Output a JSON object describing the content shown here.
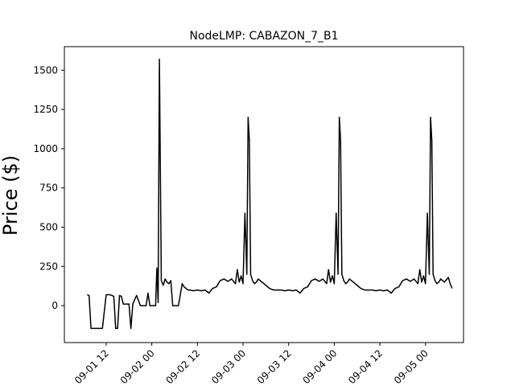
{
  "chart_data": {
    "type": "line",
    "title": "NodeLMP: CABAZON_7_B1",
    "xlabel": "",
    "ylabel": "Price ($)",
    "x_unit": "datetime",
    "xlim": [
      "2023-09-01 01:00",
      "2023-09-05 10:00"
    ],
    "ylim": [
      -235,
      1650
    ],
    "yticks": [
      0,
      250,
      500,
      750,
      1000,
      1250,
      1500
    ],
    "ytick_labels": [
      "0",
      "250",
      "500",
      "750",
      "1000",
      "1250",
      "1500"
    ],
    "xticks": [
      "2023-09-01 12:00",
      "2023-09-02 00:00",
      "2023-09-02 12:00",
      "2023-09-03 00:00",
      "2023-09-03 12:00",
      "2023-09-04 00:00",
      "2023-09-04 12:00",
      "2023-09-05 00:00"
    ],
    "xtick_labels": [
      "09-01 12",
      "09-02 00",
      "09-02 12",
      "09-03 00",
      "09-03 12",
      "09-04 00",
      "09-04 12",
      "09-05 00"
    ],
    "line_color": "#000000",
    "grid": false,
    "legend": "none",
    "series": [
      {
        "x": [
          "2023-09-01 07:00",
          "2023-09-01 07:30",
          "2023-09-01 08:00",
          "2023-09-01 09:00",
          "2023-09-01 10:00",
          "2023-09-01 11:00",
          "2023-09-01 12:00",
          "2023-09-01 13:00",
          "2023-09-01 14:00",
          "2023-09-01 14:30",
          "2023-09-01 15:00",
          "2023-09-01 15:30",
          "2023-09-01 16:00",
          "2023-09-01 16:30",
          "2023-09-01 17:00",
          "2023-09-01 18:00",
          "2023-09-01 18:30",
          "2023-09-01 19:00",
          "2023-09-01 19:30",
          "2023-09-01 20:00",
          "2023-09-01 21:00",
          "2023-09-01 21:30",
          "2023-09-01 22:00",
          "2023-09-01 22:30",
          "2023-09-01 23:00",
          "2023-09-01 23:30",
          "2023-09-02 00:00",
          "2023-09-02 00:30",
          "2023-09-02 01:00",
          "2023-09-02 01:20",
          "2023-09-02 01:40",
          "2023-09-02 02:00",
          "2023-09-02 02:30",
          "2023-09-02 03:00",
          "2023-09-02 03:30",
          "2023-09-02 04:00",
          "2023-09-02 04:30",
          "2023-09-02 05:00",
          "2023-09-02 05:30",
          "2023-09-02 06:00",
          "2023-09-02 07:00",
          "2023-09-02 08:00",
          "2023-09-02 08:30",
          "2023-09-02 09:00",
          "2023-09-02 09:30",
          "2023-09-02 10:00",
          "2023-09-02 11:00",
          "2023-09-02 12:00",
          "2023-09-02 13:00",
          "2023-09-02 14:00",
          "2023-09-02 15:00",
          "2023-09-02 16:00",
          "2023-09-02 17:00",
          "2023-09-02 18:00",
          "2023-09-02 19:00",
          "2023-09-02 20:00",
          "2023-09-02 21:00",
          "2023-09-02 22:00",
          "2023-09-02 22:30",
          "2023-09-02 23:00",
          "2023-09-02 23:30",
          "2023-09-03 00:00",
          "2023-09-03 00:30",
          "2023-09-03 01:00",
          "2023-09-03 01:20",
          "2023-09-03 01:40",
          "2023-09-03 02:00",
          "2023-09-03 02:30",
          "2023-09-03 03:00",
          "2023-09-03 03:30",
          "2023-09-03 04:00",
          "2023-09-03 05:00",
          "2023-09-03 06:00",
          "2023-09-03 07:00",
          "2023-09-03 08:00",
          "2023-09-03 09:00",
          "2023-09-03 10:00",
          "2023-09-03 11:00",
          "2023-09-03 12:00",
          "2023-09-03 13:00",
          "2023-09-03 14:00",
          "2023-09-03 15:00",
          "2023-09-03 16:00",
          "2023-09-03 17:00",
          "2023-09-03 18:00",
          "2023-09-03 19:00",
          "2023-09-03 20:00",
          "2023-09-03 21:00",
          "2023-09-03 22:00",
          "2023-09-03 22:30",
          "2023-09-03 23:00",
          "2023-09-03 23:30",
          "2023-09-04 00:00",
          "2023-09-04 00:30",
          "2023-09-04 01:00",
          "2023-09-04 01:20",
          "2023-09-04 01:40",
          "2023-09-04 02:00",
          "2023-09-04 02:30",
          "2023-09-04 03:00",
          "2023-09-04 03:30",
          "2023-09-04 04:00",
          "2023-09-04 05:00",
          "2023-09-04 06:00",
          "2023-09-04 07:00",
          "2023-09-04 08:00",
          "2023-09-04 09:00",
          "2023-09-04 10:00",
          "2023-09-04 11:00",
          "2023-09-04 12:00",
          "2023-09-04 13:00",
          "2023-09-04 14:00",
          "2023-09-04 15:00",
          "2023-09-04 16:00",
          "2023-09-04 17:00",
          "2023-09-04 18:00",
          "2023-09-04 19:00",
          "2023-09-04 20:00",
          "2023-09-04 21:00",
          "2023-09-04 22:00",
          "2023-09-04 22:30",
          "2023-09-04 23:00",
          "2023-09-04 23:30",
          "2023-09-05 00:00",
          "2023-09-05 00:30",
          "2023-09-05 01:00",
          "2023-09-05 01:20",
          "2023-09-05 01:40",
          "2023-09-05 02:00",
          "2023-09-05 02:30",
          "2023-09-05 03:00",
          "2023-09-05 03:30",
          "2023-09-05 04:00",
          "2023-09-05 05:00",
          "2023-09-05 06:00",
          "2023-09-05 06:30",
          "2023-09-05 07:00"
        ],
        "y": [
          70,
          65,
          -145,
          -145,
          -145,
          -145,
          70,
          70,
          60,
          -145,
          -145,
          65,
          60,
          10,
          10,
          10,
          -145,
          10,
          40,
          65,
          0,
          0,
          0,
          0,
          80,
          0,
          0,
          0,
          0,
          240,
          20,
          1570,
          160,
          130,
          170,
          150,
          140,
          160,
          0,
          0,
          0,
          140,
          120,
          110,
          100,
          100,
          95,
          100,
          95,
          100,
          80,
          110,
          120,
          160,
          170,
          155,
          170,
          140,
          230,
          150,
          190,
          140,
          590,
          200,
          1200,
          1050,
          200,
          160,
          140,
          150,
          170,
          150,
          130,
          110,
          100,
          100,
          100,
          95,
          100,
          95,
          100,
          80,
          110,
          120,
          160,
          170,
          155,
          170,
          140,
          230,
          150,
          190,
          140,
          590,
          200,
          1200,
          1050,
          200,
          160,
          140,
          150,
          170,
          150,
          130,
          110,
          100,
          100,
          100,
          95,
          100,
          95,
          100,
          80,
          110,
          120,
          160,
          170,
          155,
          170,
          140,
          230,
          150,
          190,
          140,
          590,
          200,
          1200,
          1050,
          200,
          160,
          140,
          150,
          170,
          150,
          180,
          140,
          110
        ]
      }
    ]
  }
}
